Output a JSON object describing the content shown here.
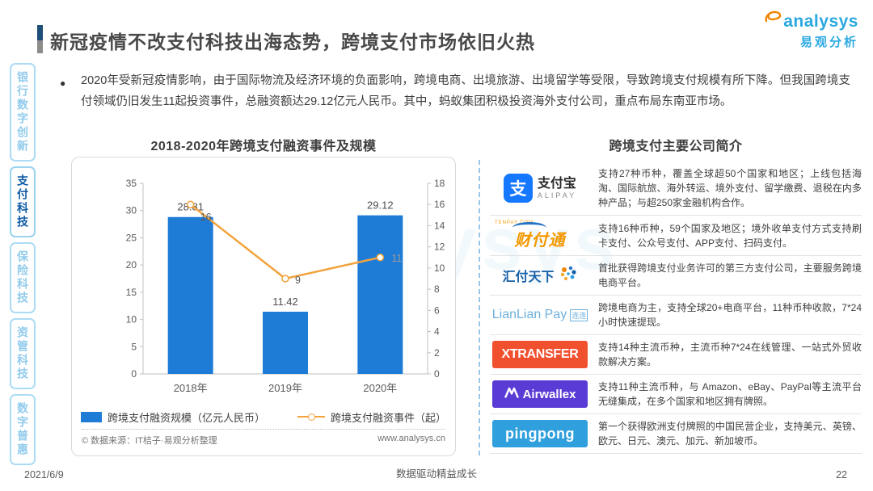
{
  "header": {
    "title": "新冠疫情不改支付科技出海态势，跨境支付市场依旧火热",
    "brand_name": "analysys",
    "brand_cn": "易观分析"
  },
  "sidebar": {
    "items": [
      {
        "label": "银行数字创新",
        "active": false
      },
      {
        "label": "支付科技",
        "active": true
      },
      {
        "label": "保险科技",
        "active": false
      },
      {
        "label": "资管科技",
        "active": false
      },
      {
        "label": "数字普惠",
        "active": false
      }
    ]
  },
  "summary": {
    "bullet": "●",
    "text": "2020年受新冠疫情影响，由于国际物流及经济环境的负面影响，跨境电商、出境旅游、出境留学等受限，导致跨境支付规模有所下降。但我国跨境支付领域仍旧发生11起投资事件，总融资额达29.12亿元人民币。其中，蚂蚁集团积极投资海外支付公司，重点布局东南亚市场。"
  },
  "chart_data": {
    "type": "bar",
    "title": "2018-2020年跨境支付融资事件及规模",
    "categories": [
      "2018年",
      "2019年",
      "2020年"
    ],
    "series": [
      {
        "name": "跨境支付融资规模（亿元人民币）",
        "type": "bar",
        "axis": "left",
        "values": [
          28.81,
          11.42,
          29.12
        ],
        "color": "#1F7CD6"
      },
      {
        "name": "跨境支付融资事件（起）",
        "type": "line",
        "axis": "right",
        "values": [
          16,
          9,
          11
        ],
        "color": "#F2A33C"
      }
    ],
    "left_axis": {
      "min": 0,
      "max": 35,
      "step": 5
    },
    "right_axis": {
      "min": 0,
      "max": 18,
      "step": 2
    },
    "legend_position": "bottom",
    "grid": false,
    "source_left": "© 数据来源：IT桔子·易观分析整理",
    "source_right": "www.analysys.cn"
  },
  "companies": {
    "title": "跨境支付主要公司简介",
    "rows": [
      {
        "name": "支付宝",
        "logo_glyph": "支",
        "logo_main": "支付宝",
        "logo_sub": "ALIPAY",
        "desc": "支持27种币种，覆盖全球超50个国家和地区；上线包括海淘、国际航旅、海外转运、境外支付、留学缴费、退税在内多种产品；与超250家金融机构合作。"
      },
      {
        "name": "财付通",
        "logo_main": "财付通",
        "logo_sub": "TENPAY.COM",
        "desc": "支持16种币种，59个国家及地区；境外收单支付方式支持刷卡支付、公众号支付、APP支付、扫码支付。"
      },
      {
        "name": "汇付天下",
        "logo_main": "汇付天下",
        "desc": "首批获得跨境支付业务许可的第三方支付公司，主要服务跨境电商平台。"
      },
      {
        "name": "连连支付",
        "logo_main": "LianLian Pay",
        "logo_sub": "连连",
        "desc": "跨境电商为主，支持全球20+电商平台，11种币种收款，7*24 小时快速提现。"
      },
      {
        "name": "XTransfer",
        "logo_main": "XTRANSFER",
        "desc": "支持14种主流币种，主流币种7*24在线管理、一站式外贸收款解决方案。"
      },
      {
        "name": "Airwallex",
        "logo_main": "Airwallex",
        "desc": "支持11种主流币种，与 Amazon、eBay、PayPal等主流平台无缝集成，在多个国家和地区拥有牌照。"
      },
      {
        "name": "PingPong",
        "logo_main": "pingpong",
        "desc": "第一个获得欧洲支付牌照的中国民营企业，支持美元、英镑、欧元、日元、澳元、加元、新加坡币。"
      }
    ]
  },
  "footer": {
    "date": "2021/6/9",
    "slogan": "数据驱动精益成长",
    "page": "22"
  }
}
